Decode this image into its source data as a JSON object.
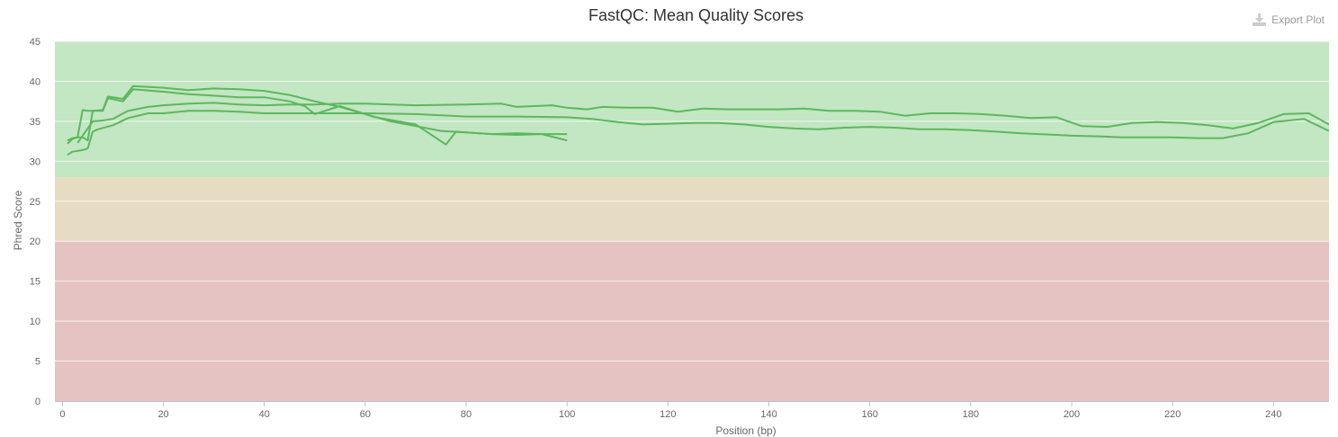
{
  "export_label": "Export Plot",
  "colors": {
    "good": "#c3e6c3",
    "warn": "#e6dcc3",
    "fail": "#e6c3c3",
    "line": "#5cb85c"
  },
  "chart_data": {
    "type": "line",
    "title": "FastQC: Mean Quality Scores",
    "xlabel": "Position (bp)",
    "ylabel": "Phred Score",
    "xlim": [
      -1.5,
      251
    ],
    "ylim": [
      0,
      45
    ],
    "xticks": [
      0,
      20,
      40,
      60,
      80,
      100,
      120,
      140,
      160,
      180,
      200,
      220,
      240
    ],
    "yticks": [
      0,
      5,
      10,
      15,
      20,
      25,
      30,
      35,
      40,
      45
    ],
    "bands": [
      {
        "from": 28,
        "to": 45,
        "color": "#c3e6c3"
      },
      {
        "from": 20,
        "to": 28,
        "color": "#e6dcc3"
      },
      {
        "from": 0,
        "to": 20,
        "color": "#e6c3c3"
      }
    ],
    "grid": true,
    "series": [
      {
        "x": [
          1,
          2,
          3,
          4,
          5,
          6,
          8,
          9,
          12,
          14,
          20,
          25,
          30,
          35,
          40,
          45,
          50,
          55,
          60,
          65,
          70,
          75,
          80,
          85,
          90,
          95,
          100
        ],
        "y": [
          32.2,
          32.8,
          33.0,
          33.0,
          32.6,
          36.3,
          36.4,
          38.1,
          37.8,
          39.4,
          39.2,
          38.9,
          39.1,
          39.0,
          38.8,
          38.3,
          37.5,
          36.8,
          35.9,
          35.0,
          34.4,
          33.8,
          33.6,
          33.4,
          33.5,
          33.4,
          32.6
        ]
      },
      {
        "x": [
          1,
          2,
          3,
          4,
          5,
          6,
          8,
          9,
          12,
          14,
          20,
          25,
          30,
          35,
          40,
          45,
          48,
          50,
          52,
          55,
          58,
          62,
          70,
          76,
          78,
          80,
          85,
          90,
          95,
          100
        ],
        "y": [
          32.6,
          32.9,
          33.0,
          36.4,
          36.3,
          36.3,
          36.3,
          37.9,
          37.5,
          39.0,
          38.7,
          38.4,
          38.2,
          38.0,
          38.0,
          37.5,
          36.9,
          35.9,
          36.3,
          36.9,
          36.3,
          35.5,
          34.6,
          32.1,
          33.7,
          33.6,
          33.4,
          33.3,
          33.4,
          33.4
        ]
      },
      {
        "x": [
          1,
          2,
          3,
          4,
          5,
          6,
          7,
          10,
          13,
          17,
          20,
          25,
          30,
          35,
          40,
          45,
          50,
          55,
          60,
          70,
          80,
          90,
          100,
          105,
          110,
          115,
          120,
          125,
          130,
          135,
          140,
          145,
          150,
          155,
          160,
          165,
          170,
          175,
          180,
          185,
          190,
          197,
          200,
          206,
          210,
          215,
          220,
          225,
          230,
          235,
          240,
          246,
          251
        ],
        "y": [
          30.8,
          31.2,
          31.3,
          31.4,
          31.6,
          33.7,
          34.0,
          34.5,
          35.4,
          36.0,
          36.0,
          36.3,
          36.3,
          36.2,
          36.0,
          36.0,
          36.0,
          36.0,
          36.0,
          35.9,
          35.6,
          35.6,
          35.5,
          35.3,
          34.9,
          34.6,
          34.7,
          34.8,
          34.8,
          34.6,
          34.3,
          34.1,
          34.0,
          34.2,
          34.3,
          34.2,
          34.0,
          34.0,
          33.9,
          33.7,
          33.5,
          33.3,
          33.2,
          33.1,
          33.0,
          33.0,
          33.0,
          32.9,
          32.9,
          33.5,
          34.9,
          35.3,
          33.8
        ]
      },
      {
        "x": [
          3,
          6,
          8,
          10,
          13,
          17,
          20,
          25,
          30,
          35,
          40,
          45,
          50,
          55,
          60,
          70,
          80,
          87,
          90,
          97,
          100,
          104,
          107,
          112,
          117,
          122,
          127,
          132,
          137,
          142,
          147,
          152,
          157,
          162,
          167,
          172,
          177,
          182,
          187,
          192,
          197,
          202,
          207,
          212,
          217,
          222,
          227,
          232,
          237,
          242,
          247,
          251
        ],
        "y": [
          32.3,
          35.0,
          35.1,
          35.3,
          36.3,
          36.8,
          37.0,
          37.2,
          37.3,
          37.1,
          37.0,
          37.1,
          37.1,
          37.2,
          37.2,
          37.0,
          37.1,
          37.2,
          36.8,
          37.0,
          36.7,
          36.5,
          36.8,
          36.7,
          36.7,
          36.2,
          36.6,
          36.5,
          36.5,
          36.5,
          36.6,
          36.3,
          36.3,
          36.2,
          35.7,
          36.0,
          36.0,
          35.9,
          35.7,
          35.4,
          35.5,
          34.4,
          34.3,
          34.8,
          34.9,
          34.8,
          34.5,
          34.1,
          34.8,
          35.9,
          36.0,
          34.6
        ]
      }
    ]
  }
}
